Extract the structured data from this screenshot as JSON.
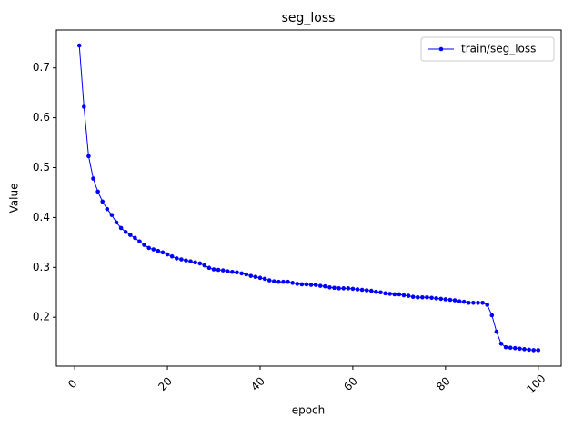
{
  "chart_data": {
    "type": "line",
    "title": "seg_loss",
    "x_label": "epoch",
    "y_label": "Value",
    "x": [
      1,
      2,
      3,
      4,
      5,
      6,
      7,
      8,
      9,
      10,
      11,
      12,
      13,
      14,
      15,
      16,
      17,
      18,
      19,
      20,
      21,
      22,
      23,
      24,
      25,
      26,
      27,
      28,
      29,
      30,
      31,
      32,
      33,
      34,
      35,
      36,
      37,
      38,
      39,
      40,
      41,
      42,
      43,
      44,
      45,
      46,
      47,
      48,
      49,
      50,
      51,
      52,
      53,
      54,
      55,
      56,
      57,
      58,
      59,
      60,
      61,
      62,
      63,
      64,
      65,
      66,
      67,
      68,
      69,
      70,
      71,
      72,
      73,
      74,
      75,
      76,
      77,
      78,
      79,
      80,
      81,
      82,
      83,
      84,
      85,
      86,
      87,
      88,
      89,
      90,
      91,
      92,
      93,
      94,
      95,
      96,
      97,
      98,
      99,
      100
    ],
    "series": [
      {
        "name": "train/seg_loss",
        "color": "#0000ff",
        "values": [
          0.745,
          0.622,
          0.523,
          0.478,
          0.452,
          0.432,
          0.417,
          0.405,
          0.39,
          0.379,
          0.371,
          0.365,
          0.359,
          0.352,
          0.345,
          0.339,
          0.336,
          0.333,
          0.33,
          0.326,
          0.322,
          0.318,
          0.316,
          0.314,
          0.312,
          0.31,
          0.308,
          0.304,
          0.299,
          0.296,
          0.295,
          0.294,
          0.292,
          0.291,
          0.29,
          0.288,
          0.286,
          0.283,
          0.281,
          0.279,
          0.277,
          0.274,
          0.272,
          0.271,
          0.271,
          0.271,
          0.269,
          0.267,
          0.266,
          0.266,
          0.265,
          0.265,
          0.263,
          0.262,
          0.26,
          0.259,
          0.258,
          0.258,
          0.258,
          0.257,
          0.256,
          0.255,
          0.254,
          0.253,
          0.251,
          0.25,
          0.248,
          0.247,
          0.246,
          0.246,
          0.244,
          0.243,
          0.241,
          0.24,
          0.24,
          0.24,
          0.239,
          0.238,
          0.237,
          0.236,
          0.235,
          0.234,
          0.232,
          0.231,
          0.229,
          0.229,
          0.229,
          0.229,
          0.225,
          0.204,
          0.171,
          0.147,
          0.14,
          0.139,
          0.138,
          0.137,
          0.136,
          0.135,
          0.134,
          0.134
        ]
      }
    ],
    "xlim": [
      -3.95,
      104.95
    ],
    "ylim": [
      0.102,
      0.776
    ],
    "xticks": [
      0,
      20,
      40,
      60,
      80,
      100
    ],
    "yticks": [
      0.2,
      0.3,
      0.4,
      0.5,
      0.6,
      0.7
    ],
    "legend": "upper right"
  }
}
